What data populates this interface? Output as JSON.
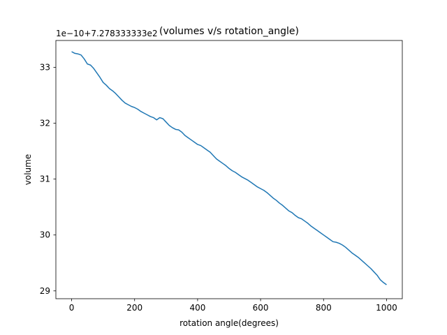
{
  "chart_data": {
    "type": "line",
    "title": "(volumes v/s rotation_angle)",
    "xlabel": "rotation angle(degrees)",
    "ylabel": "volume",
    "offset_label": "1e−10+7.278333333e2",
    "xlim": [
      -50,
      1050
    ],
    "ylim": [
      28.86,
      33.48
    ],
    "x_ticks": [
      {
        "value": 0,
        "label": "0"
      },
      {
        "value": 200,
        "label": "200"
      },
      {
        "value": 400,
        "label": "400"
      },
      {
        "value": 600,
        "label": "600"
      },
      {
        "value": 800,
        "label": "800"
      },
      {
        "value": 1000,
        "label": "1000"
      }
    ],
    "y_ticks": [
      {
        "value": 29,
        "label": "29"
      },
      {
        "value": 30,
        "label": "30"
      },
      {
        "value": 31,
        "label": "31"
      },
      {
        "value": 32,
        "label": "32"
      },
      {
        "value": 33,
        "label": "33"
      }
    ],
    "grid": false,
    "series": [
      {
        "color": "#1f77b4",
        "x": [
          0,
          10,
          20,
          30,
          40,
          50,
          60,
          70,
          80,
          90,
          100,
          110,
          120,
          130,
          140,
          150,
          160,
          170,
          180,
          190,
          200,
          210,
          220,
          230,
          240,
          250,
          260,
          270,
          280,
          290,
          300,
          310,
          320,
          330,
          340,
          350,
          360,
          370,
          380,
          390,
          400,
          410,
          420,
          430,
          440,
          450,
          460,
          470,
          480,
          490,
          500,
          510,
          520,
          530,
          540,
          550,
          560,
          570,
          580,
          590,
          600,
          610,
          620,
          630,
          640,
          650,
          660,
          670,
          680,
          690,
          700,
          710,
          720,
          730,
          740,
          750,
          760,
          770,
          780,
          790,
          800,
          810,
          820,
          830,
          840,
          850,
          860,
          870,
          880,
          890,
          900,
          910,
          920,
          930,
          940,
          950,
          960,
          970,
          980,
          990,
          1000
        ],
        "y": [
          33.28,
          33.25,
          33.24,
          33.22,
          33.15,
          33.06,
          33.04,
          32.98,
          32.9,
          32.82,
          32.73,
          32.68,
          32.62,
          32.58,
          32.53,
          32.47,
          32.41,
          32.36,
          32.33,
          32.3,
          32.28,
          32.25,
          32.21,
          32.18,
          32.15,
          32.12,
          32.1,
          32.06,
          32.1,
          32.08,
          32.02,
          31.96,
          31.92,
          31.89,
          31.88,
          31.84,
          31.78,
          31.74,
          31.7,
          31.66,
          31.62,
          31.6,
          31.56,
          31.52,
          31.48,
          31.42,
          31.36,
          31.32,
          31.28,
          31.24,
          31.19,
          31.15,
          31.12,
          31.08,
          31.04,
          31.01,
          30.98,
          30.94,
          30.9,
          30.86,
          30.83,
          30.8,
          30.76,
          30.71,
          30.66,
          30.62,
          30.57,
          30.53,
          30.48,
          30.43,
          30.4,
          30.35,
          30.31,
          30.29,
          30.25,
          30.21,
          30.16,
          30.12,
          30.08,
          30.04,
          30.0,
          29.96,
          29.92,
          29.88,
          29.87,
          29.85,
          29.82,
          29.78,
          29.73,
          29.68,
          29.64,
          29.6,
          29.55,
          29.5,
          29.45,
          29.4,
          29.34,
          29.28,
          29.2,
          29.15,
          29.11
        ]
      }
    ]
  }
}
